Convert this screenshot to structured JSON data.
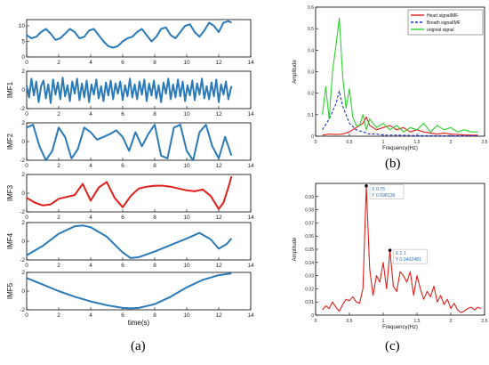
{
  "panel_labels": {
    "a": "(a)",
    "b": "(b)",
    "c": "(c)"
  },
  "chart_data": [
    {
      "id": "original",
      "type": "line",
      "ylabel": "",
      "xlabel": "",
      "xlim": [
        0,
        14
      ],
      "ylim": [
        0,
        12
      ],
      "xticks": [
        "0",
        "2",
        "4",
        "6",
        "8",
        "10",
        "12",
        "14"
      ],
      "yticks": [
        "0",
        "5",
        "10"
      ],
      "color": "#2a7ab8",
      "series": [
        {
          "x": [
            0,
            0.3,
            0.6,
            0.9,
            1.2,
            1.5,
            1.8,
            2.1,
            2.4,
            2.7,
            3.0,
            3.3,
            3.6,
            3.9,
            4.2,
            4.5,
            4.8,
            5.1,
            5.4,
            5.7,
            6.0,
            6.3,
            6.6,
            6.9,
            7.2,
            7.5,
            7.8,
            8.1,
            8.4,
            8.7,
            9.0,
            9.3,
            9.6,
            9.9,
            10.2,
            10.5,
            10.8,
            11.1,
            11.4,
            11.7,
            12.0,
            12.3,
            12.6,
            12.8
          ],
          "y": [
            7,
            6,
            6.5,
            8,
            9,
            7.5,
            5.5,
            6,
            7.5,
            9,
            8,
            6,
            6.5,
            8.5,
            9,
            7,
            5,
            3.5,
            3,
            3.5,
            5,
            6,
            6.5,
            8,
            9,
            7,
            5,
            6.5,
            9,
            9.5,
            7,
            6,
            8,
            10,
            10.5,
            8,
            6.5,
            8.5,
            11,
            10,
            8,
            11,
            11.5,
            11
          ]
        }
      ]
    },
    {
      "id": "imf1",
      "type": "line",
      "ylabel": "IMF1",
      "xlim": [
        0,
        14
      ],
      "ylim": [
        -2,
        2
      ],
      "xticks": [
        "0",
        "2",
        "4",
        "6",
        "8",
        "10",
        "12",
        "14"
      ],
      "yticks": [
        "-2",
        "0",
        "2"
      ],
      "color": "#2a7ab8",
      "series": [
        {
          "x": [
            0,
            0.15,
            0.3,
            0.45,
            0.6,
            0.75,
            0.9,
            1.05,
            1.2,
            1.35,
            1.5,
            1.65,
            1.8,
            1.95,
            2.1,
            2.25,
            2.4,
            2.55,
            2.7,
            2.85,
            3.0,
            3.15,
            3.3,
            3.45,
            3.6,
            3.75,
            3.9,
            4.05,
            4.2,
            4.35,
            4.5,
            4.65,
            4.8,
            4.95,
            5.1,
            5.25,
            5.4,
            5.55,
            5.7,
            5.85,
            6.0,
            6.15,
            6.3,
            6.45,
            6.6,
            6.75,
            6.9,
            7.05,
            7.2,
            7.35,
            7.5,
            7.65,
            7.8,
            7.95,
            8.1,
            8.25,
            8.4,
            8.55,
            8.7,
            8.85,
            9.0,
            9.15,
            9.3,
            9.45,
            9.6,
            9.75,
            9.9,
            10.05,
            10.2,
            10.35,
            10.5,
            10.65,
            10.8,
            10.95,
            11.1,
            11.25,
            11.4,
            11.55,
            11.7,
            11.85,
            12.0,
            12.15,
            12.3,
            12.45,
            12.6,
            12.8
          ],
          "y": [
            0.5,
            -0.8,
            1.2,
            -0.6,
            0.9,
            -1.3,
            0.4,
            1.0,
            -0.9,
            0.6,
            -1.4,
            1.1,
            -0.5,
            0.8,
            -1.0,
            1.3,
            -0.7,
            0.5,
            -1.2,
            0.9,
            -0.4,
            1.2,
            -1.1,
            0.7,
            -0.8,
            1.0,
            -1.3,
            0.6,
            -0.5,
            1.1,
            -0.9,
            0.4,
            -1.2,
            0.8,
            -0.6,
            1.0,
            -1.0,
            0.7,
            -0.4,
            0.9,
            -1.1,
            0.5,
            -0.7,
            1.2,
            -0.8,
            0.6,
            -1.0,
            0.9,
            -0.5,
            1.1,
            -1.2,
            0.7,
            -0.6,
            1.0,
            -0.9,
            0.5,
            -1.3,
            0.8,
            -0.4,
            1.2,
            -1.0,
            0.6,
            -0.8,
            1.1,
            -0.7,
            0.9,
            -1.2,
            0.5,
            -0.6,
            1.0,
            -1.1,
            0.7,
            -0.5,
            1.2,
            -0.9,
            0.4,
            -1.0,
            0.8,
            -0.7,
            1.1,
            -1.3,
            0.6,
            -0.5,
            0.9,
            -1.0,
            0.4
          ]
        }
      ]
    },
    {
      "id": "imf2",
      "type": "line",
      "ylabel": "IMF2",
      "xlim": [
        0,
        14
      ],
      "ylim": [
        -2,
        2
      ],
      "xticks": [
        "0",
        "2",
        "4",
        "6",
        "8",
        "10",
        "12",
        "14"
      ],
      "yticks": [
        "-2",
        "0",
        "2"
      ],
      "color": "#2a7ab8",
      "series": [
        {
          "x": [
            0,
            0.4,
            0.8,
            1.2,
            1.6,
            2.0,
            2.4,
            2.8,
            3.2,
            3.6,
            4.0,
            4.4,
            4.8,
            5.2,
            5.6,
            6.0,
            6.4,
            6.8,
            7.2,
            7.6,
            8.0,
            8.4,
            8.8,
            9.2,
            9.6,
            10.0,
            10.4,
            10.8,
            11.2,
            11.6,
            12.0,
            12.4,
            12.8
          ],
          "y": [
            1.5,
            1.8,
            -0.5,
            -2,
            -1,
            1.5,
            0.5,
            -1.8,
            -0.8,
            1.5,
            1.0,
            0.2,
            0.5,
            0.8,
            1.2,
            0.5,
            -1.0,
            1.0,
            -0.5,
            0.8,
            1.8,
            -1.5,
            -1.8,
            1.5,
            1.8,
            -1.0,
            -2,
            1.0,
            1.8,
            -0.5,
            -1.8,
            0.5,
            -1.5
          ]
        }
      ]
    },
    {
      "id": "imf3",
      "type": "line",
      "ylabel": "IMF3",
      "xlim": [
        0,
        14
      ],
      "ylim": [
        -2,
        2
      ],
      "xticks": [
        "0",
        "2",
        "4",
        "6",
        "8",
        "10",
        "12",
        "14"
      ],
      "yticks": [
        "-2",
        "0",
        "2"
      ],
      "color": "#e0201b",
      "series": [
        {
          "x": [
            0,
            0.5,
            1.0,
            1.5,
            2.0,
            2.5,
            3.0,
            3.5,
            4.0,
            4.5,
            5.0,
            5.5,
            6.0,
            6.5,
            7.0,
            7.5,
            8.0,
            8.5,
            9.0,
            9.5,
            10.0,
            10.5,
            11.0,
            11.5,
            12.0,
            12.3,
            12.6,
            12.8
          ],
          "y": [
            -0.5,
            -1.0,
            -1.3,
            -1.2,
            -0.6,
            -0.4,
            -0.2,
            1.0,
            -0.8,
            0.6,
            1.2,
            -0.5,
            -1.5,
            -0.3,
            0.5,
            0.7,
            0.8,
            0.8,
            0.7,
            0.5,
            0.3,
            0.2,
            0.4,
            -0.3,
            -1.7,
            -1.0,
            0.6,
            1.8
          ]
        }
      ]
    },
    {
      "id": "imf4",
      "type": "line",
      "ylabel": "IMF4",
      "xlim": [
        0,
        14
      ],
      "ylim": [
        -2,
        2
      ],
      "xticks": [
        "0",
        "2",
        "4",
        "6",
        "8",
        "10",
        "12",
        "14"
      ],
      "yticks": [
        "-2",
        "0",
        "2"
      ],
      "color": "#2a7ab8",
      "series": [
        {
          "x": [
            0,
            1,
            2,
            3,
            3.5,
            4,
            5,
            6,
            6.5,
            7,
            8,
            9,
            10,
            10.8,
            11.5,
            12.0,
            12.5,
            12.8
          ],
          "y": [
            -1.5,
            -0.5,
            0.8,
            1.6,
            1.7,
            1.5,
            0.5,
            -1.2,
            -1.8,
            -1.7,
            -1.1,
            -0.4,
            0.3,
            0.9,
            0.2,
            -0.8,
            -0.3,
            0.3
          ]
        }
      ]
    },
    {
      "id": "imf5",
      "type": "line",
      "ylabel": "IMF5",
      "xlim": [
        0,
        14
      ],
      "ylim": [
        -2,
        2
      ],
      "xticks": [
        "0",
        "2",
        "4",
        "6",
        "8",
        "10",
        "12",
        "14"
      ],
      "yticks": [
        "-2",
        "0",
        "2"
      ],
      "xlabel": "time(s)",
      "color": "#2a7ab8",
      "series": [
        {
          "x": [
            0,
            1,
            2,
            3,
            4,
            5,
            6,
            6.5,
            7,
            8,
            9,
            10,
            11,
            12,
            12.8
          ],
          "y": [
            1.4,
            0.7,
            0.0,
            -0.6,
            -1.1,
            -1.5,
            -1.8,
            -1.85,
            -1.8,
            -1.4,
            -0.6,
            0.4,
            1.2,
            1.7,
            1.9
          ]
        }
      ]
    },
    {
      "id": "spectrum_b",
      "type": "line",
      "xlabel": "Frequency(Hz)",
      "ylabel": "Amplitude",
      "xlim": [
        0,
        2.5
      ],
      "ylim": [
        0,
        0.6
      ],
      "xticks": [
        "0",
        "0.5",
        "1",
        "1.5",
        "2",
        "2.5"
      ],
      "yticks": [
        "0",
        "0.1",
        "0.2",
        "0.3",
        "0.4",
        "0.5",
        "0.6"
      ],
      "legend": {
        "position": "top-right"
      },
      "series": [
        {
          "name": "Heart signalIMF",
          "color": "#e0201b",
          "dash": false,
          "x": [
            0.1,
            0.2,
            0.3,
            0.4,
            0.5,
            0.6,
            0.7,
            0.75,
            0.8,
            0.9,
            1.0,
            1.1,
            1.2,
            1.3,
            1.4,
            1.5,
            1.6,
            1.7,
            1.8,
            1.9,
            2.0,
            2.1,
            2.2,
            2.3,
            2.4
          ],
          "y": [
            0.005,
            0.01,
            0.008,
            0.01,
            0.02,
            0.04,
            0.06,
            0.09,
            0.05,
            0.03,
            0.04,
            0.05,
            0.03,
            0.04,
            0.02,
            0.03,
            0.02,
            0.015,
            0.01,
            0.015,
            0.01,
            0.008,
            0.006,
            0.005,
            0.005
          ]
        },
        {
          "name": "Breath signalIMF",
          "color": "#1a2fd0",
          "dash": true,
          "x": [
            0.1,
            0.2,
            0.3,
            0.35,
            0.4,
            0.5,
            0.6,
            0.7,
            0.8,
            0.9,
            1.0,
            1.2,
            1.5,
            2.0,
            2.4
          ],
          "y": [
            0.03,
            0.08,
            0.15,
            0.21,
            0.14,
            0.06,
            0.03,
            0.02,
            0.01,
            0.01,
            0.005,
            0.005,
            0.003,
            0.002,
            0.002
          ]
        },
        {
          "name": "original signal",
          "color": "#2fd02f",
          "dash": false,
          "x": [
            0.1,
            0.15,
            0.2,
            0.25,
            0.3,
            0.35,
            0.4,
            0.45,
            0.5,
            0.55,
            0.6,
            0.65,
            0.7,
            0.75,
            0.8,
            0.9,
            1.0,
            1.1,
            1.2,
            1.3,
            1.4,
            1.5,
            1.6,
            1.7,
            1.8,
            1.9,
            2.0,
            2.1,
            2.2,
            2.3,
            2.4
          ],
          "y": [
            0.1,
            0.23,
            0.08,
            0.3,
            0.42,
            0.55,
            0.28,
            0.13,
            0.22,
            0.09,
            0.05,
            0.05,
            0.1,
            0.03,
            0.08,
            0.04,
            0.06,
            0.03,
            0.05,
            0.02,
            0.04,
            0.03,
            0.06,
            0.02,
            0.05,
            0.03,
            0.04,
            0.02,
            0.03,
            0.02,
            0.02
          ]
        }
      ]
    },
    {
      "id": "spectrum_c",
      "type": "line",
      "xlabel": "Frequency(Hz)",
      "ylabel": "Amplitude",
      "xlim": [
        0,
        2.5
      ],
      "ylim": [
        0,
        0.1
      ],
      "xticks": [
        "0",
        "0.5",
        "1",
        "1.5",
        "2",
        "2.5"
      ],
      "yticks": [
        "0",
        "0.01",
        "0.02",
        "0.03",
        "0.04",
        "0.05",
        "0.06",
        "0.07",
        "0.08",
        "0.09"
      ],
      "color": "#e0201b",
      "series": [
        {
          "x": [
            0.1,
            0.15,
            0.2,
            0.25,
            0.3,
            0.35,
            0.4,
            0.45,
            0.5,
            0.55,
            0.6,
            0.65,
            0.7,
            0.75,
            0.8,
            0.85,
            0.9,
            0.95,
            1.0,
            1.05,
            1.1,
            1.15,
            1.2,
            1.25,
            1.3,
            1.35,
            1.4,
            1.45,
            1.5,
            1.55,
            1.6,
            1.65,
            1.7,
            1.75,
            1.8,
            1.85,
            1.9,
            1.95,
            2.0,
            2.05,
            2.1,
            2.15,
            2.2,
            2.25,
            2.3,
            2.35,
            2.4,
            2.45
          ],
          "y": [
            0.004,
            0.007,
            0.005,
            0.01,
            0.006,
            0.003,
            0.008,
            0.012,
            0.011,
            0.014,
            0.01,
            0.009,
            0.02,
            0.098,
            0.035,
            0.015,
            0.03,
            0.025,
            0.04,
            0.02,
            0.049,
            0.022,
            0.018,
            0.033,
            0.03,
            0.025,
            0.033,
            0.015,
            0.03,
            0.02,
            0.012,
            0.018,
            0.014,
            0.022,
            0.01,
            0.015,
            0.008,
            0.012,
            0.005,
            0.009,
            0.004,
            0.002,
            0.003,
            0.005,
            0.006,
            0.004,
            0.006,
            0.005
          ]
        }
      ],
      "annotations": [
        {
          "x": 0.75,
          "y": 0.098136,
          "line1": "X 0.75",
          "line2": "Y 0.098136"
        },
        {
          "x": 1.1,
          "y": 0.0492481,
          "line1": "X 1.1",
          "line2": "Y 0.0492481"
        }
      ]
    }
  ]
}
